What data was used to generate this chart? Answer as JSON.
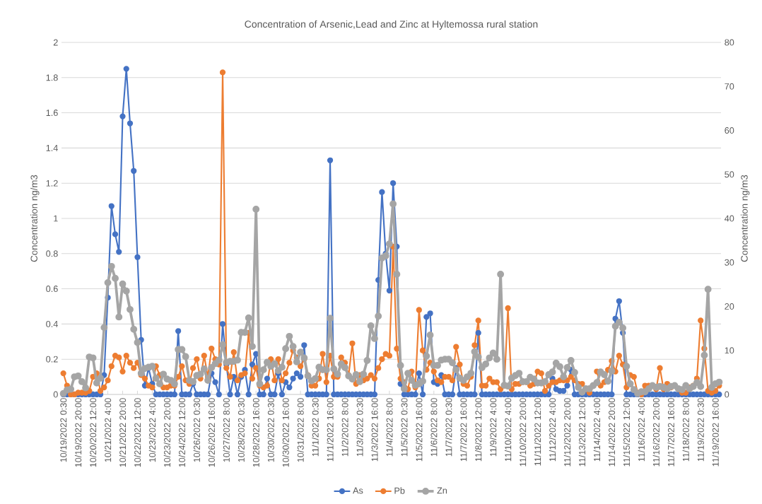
{
  "chart_data": {
    "type": "line",
    "title": "Concentration of Arsenic,Lead and Zinc at Hyltemossa rural station",
    "ylabel": "Concentration ng/m3",
    "y2label": "Concentration ng/m3",
    "categories": [
      "10/19/2022 0:30",
      null,
      null,
      null,
      "10/19/2022 20:00",
      null,
      null,
      null,
      "10/20/2022 12:00",
      null,
      null,
      null,
      "10/21/2022 4:00",
      null,
      null,
      null,
      "10/21/2022 20:00",
      null,
      null,
      null,
      "10/22/2022 12:00",
      null,
      null,
      null,
      "10/23/2022 4:00",
      null,
      null,
      null,
      "10/23/2022 20:00",
      null,
      null,
      null,
      "10/24/2022 12:00",
      null,
      null,
      null,
      "10/26/2022 0:30",
      null,
      null,
      null,
      "10/26/2022 16:00",
      null,
      null,
      null,
      "10/27/2022 8:00",
      null,
      null,
      null,
      "10/28/2022 0:30",
      null,
      null,
      null,
      "10/28/2022 16:00",
      null,
      null,
      null,
      "10/30/2022 0:30",
      null,
      null,
      null,
      "10/30/2022 16:00",
      null,
      null,
      null,
      "10/31/2022 8:00",
      null,
      null,
      null,
      "11/1/2022 0:30",
      null,
      null,
      null,
      "11/1/2022 16:00",
      null,
      null,
      null,
      "11/2/2022 8:00",
      null,
      null,
      null,
      "11/3/2022 0:30",
      null,
      null,
      null,
      "11/3/2022 16:00",
      null,
      null,
      null,
      "11/4/2022 8:00",
      null,
      null,
      null,
      "11/5/2022 0:30",
      null,
      null,
      null,
      "11/5/2022 16:00",
      null,
      null,
      null,
      "11/6/2022 8:00",
      null,
      null,
      null,
      "11/7/2022 0:30",
      null,
      null,
      null,
      "11/7/2022 16:00",
      null,
      null,
      null,
      "11/8/2022 12:00",
      null,
      null,
      null,
      "11/9/2022 4:00",
      null,
      null,
      null,
      "11/10/2022 4:00",
      null,
      null,
      null,
      "11/10/2022 20:00",
      null,
      null,
      null,
      "11/11/2022 12:00",
      null,
      null,
      null,
      "11/12/2022 4:00",
      null,
      null,
      null,
      "11/12/2022 20:00",
      null,
      null,
      null,
      "11/13/2022 12:00",
      null,
      null,
      null,
      "11/14/2022 4:00",
      null,
      null,
      null,
      "11/14/2022 20:00",
      null,
      null,
      null,
      "11/15/2022 12:00",
      null,
      null,
      null,
      "11/16/2022 4:00",
      null,
      null,
      null,
      "11/16/2022 20:00",
      null,
      null,
      null,
      "11/17/2022 16:00",
      null,
      null,
      null,
      "11/18/2022 8:00",
      null,
      null,
      null,
      "11/19/2022 0:30",
      null,
      null,
      null,
      "11/19/2022 16:00",
      null
    ],
    "series": [
      {
        "name": "As",
        "color": "#4472c4",
        "values": [
          0,
          0,
          0,
          0,
          0,
          0,
          0,
          0,
          0,
          0,
          0,
          0.11,
          0.55,
          1.07,
          0.91,
          0.81,
          1.58,
          1.85,
          1.54,
          1.27,
          0.78,
          0.31,
          0.05,
          0.15,
          0.06,
          0,
          0,
          0,
          0,
          0,
          0,
          0.36,
          0,
          0,
          0,
          0.06,
          0,
          0,
          0,
          0,
          0.12,
          0.07,
          0,
          0.4,
          0.17,
          0,
          0.1,
          0,
          0.1,
          0.14,
          0,
          0.17,
          0.23,
          0,
          0,
          0.09,
          0,
          0,
          0.12,
          0,
          0.07,
          0.04,
          0.09,
          0.12,
          0.1,
          0.28,
          0,
          0,
          0,
          0,
          0,
          0,
          1.33,
          0,
          0,
          0,
          0,
          0,
          0,
          0,
          0,
          0,
          0,
          0,
          0,
          0.65,
          1.15,
          0.8,
          0.59,
          1.2,
          0.84,
          0.06,
          0,
          0,
          0,
          0,
          0.12,
          0,
          0.44,
          0.46,
          0.07,
          0.06,
          0.11,
          0,
          0,
          0,
          0.15,
          0,
          0,
          0,
          0,
          0,
          0.35,
          0,
          0,
          0,
          0,
          0,
          0,
          0,
          0,
          0,
          0,
          0,
          0,
          0,
          0,
          0,
          0,
          0,
          0,
          0,
          0.09,
          0.03,
          0.02,
          0.02,
          0.05,
          0.14,
          0,
          0,
          0,
          0,
          0,
          0,
          0,
          0,
          0,
          0,
          0,
          0.43,
          0.53,
          0.35,
          0,
          0,
          0,
          0,
          0,
          0,
          0,
          0,
          0,
          0,
          0,
          0,
          0,
          0,
          0,
          0,
          0,
          0,
          0,
          0,
          0,
          0,
          0,
          0,
          0,
          0
        ]
      },
      {
        "name": "Pb",
        "color": "#ed7d31",
        "values": [
          0.12,
          0.05,
          0,
          0,
          0.01,
          0.01,
          0.01,
          0.02,
          0.1,
          0.12,
          0.02,
          0.04,
          0.08,
          0.16,
          0.22,
          0.21,
          0.13,
          0.22,
          0.18,
          0.15,
          0.18,
          0.11,
          0.09,
          0.05,
          0.04,
          0.16,
          0.11,
          0.04,
          0.04,
          0.05,
          0.05,
          0.1,
          0.16,
          0.08,
          0.06,
          0.15,
          0.2,
          0.09,
          0.22,
          0.1,
          0.26,
          0.2,
          0.17,
          1.83,
          0.15,
          0.1,
          0.24,
          0.08,
          0.11,
          0.12,
          0.35,
          0.09,
          0.15,
          0.05,
          0.04,
          0.05,
          0.2,
          0.08,
          0.2,
          0.08,
          0.12,
          0.18,
          0.25,
          0.21,
          0.16,
          0.2,
          0.11,
          0.05,
          0.05,
          0.09,
          0.23,
          0.07,
          0.22,
          0.1,
          0.1,
          0.21,
          0.18,
          0.11,
          0.29,
          0.06,
          0.11,
          0.08,
          0.09,
          0.11,
          0.09,
          0.15,
          0.2,
          0.23,
          0.22,
          0.84,
          0.26,
          0.09,
          0.07,
          0.03,
          0.13,
          0.04,
          0.48,
          0.25,
          0.14,
          0.18,
          0.13,
          0.08,
          0.07,
          0.1,
          0.1,
          0.08,
          0.27,
          0.17,
          0.06,
          0.05,
          0.1,
          0.28,
          0.42,
          0.05,
          0.05,
          0.09,
          0.07,
          0.07,
          0.03,
          0.05,
          0.49,
          0.03,
          0.06,
          0.06,
          0.07,
          0.07,
          0.05,
          0.06,
          0.13,
          0.12,
          0.02,
          0.05,
          0.07,
          0.07,
          0.08,
          0.08,
          0.08,
          0.1,
          0.08,
          0.06,
          0.06,
          0.03,
          0.01,
          null,
          0.13,
          0.05,
          0.07,
          0.14,
          0.19,
          0.13,
          0.22,
          0.17,
          0.04,
          0.11,
          0.1,
          0.01,
          0,
          0.05,
          0.05,
          0.05,
          0.03,
          0.15,
          0.03,
          0.06,
          0.04,
          null,
          0.03,
          0.01,
          0.01,
          0.04,
          0.05,
          0.09,
          0.42,
          0.26,
          0.02,
          0.01,
          0.02,
          0.05
        ]
      },
      {
        "name": "Zn",
        "color": "#a5a5a5",
        "axis": "y2",
        "values": [
          0.2,
          1.0,
          1.2,
          4.0,
          4.2,
          2.9,
          1.5,
          8.5,
          8.3,
          2.6,
          3.7,
          15.2,
          25.4,
          29.1,
          26.4,
          17.6,
          25.1,
          23.5,
          19.3,
          14.8,
          11.8,
          4.8,
          5.9,
          6.2,
          6.4,
          3.7,
          2.4,
          4.6,
          3.5,
          3.2,
          2.4,
          10.2,
          10.2,
          8.6,
          3.2,
          2.9,
          4.3,
          4.6,
          5.8,
          3.2,
          6.1,
          7.0,
          7.8,
          11.3,
          7.3,
          7.5,
          7.5,
          7.8,
          14.1,
          14.1,
          17.4,
          10.9,
          42.1,
          2.4,
          5.6,
          7.3,
          6.4,
          7.0,
          5.4,
          6.2,
          10.4,
          13.2,
          10.9,
          7.4,
          9.6,
          8.3,
          4.2,
          3.1,
          3.6,
          6.2,
          5.6,
          5.6,
          17.3,
          5.8,
          4.6,
          6.9,
          6.1,
          4.2,
          3.5,
          4.5,
          2.9,
          4.6,
          7.7,
          15.6,
          12.7,
          17.8,
          31.0,
          31.5,
          34.2,
          43.3,
          27.3,
          6.6,
          1.3,
          4.8,
          3.2,
          2.1,
          2.4,
          3.0,
          8.7,
          13.5,
          6.6,
          6.6,
          7.8,
          8.0,
          8.0,
          7.2,
          5.6,
          3.7,
          3.2,
          4.0,
          4.8,
          9.7,
          8.5,
          6.1,
          6.9,
          8.3,
          9.4,
          8.0,
          27.3,
          2.1,
          1.9,
          3.7,
          4.3,
          4.8,
          2.9,
          2.9,
          3.9,
          3.5,
          2.6,
          2.6,
          2.9,
          4.5,
          5.1,
          7.1,
          6.3,
          4.0,
          6.1,
          7.7,
          5.0,
          1.6,
          0.5,
          1.3,
          1.3,
          2.0,
          2.7,
          5.1,
          4.5,
          3.0,
          5.3,
          15.5,
          16.4,
          15.1,
          6.4,
          2.4,
          1.1,
          0.2,
          0.6,
          0.6,
          1.3,
          2.0,
          1.6,
          1.8,
          1.6,
          1.3,
          1.8,
          2.0,
          1.3,
          1.1,
          2.0,
          1.3,
          1.8,
          2.7,
          1.8,
          8.9,
          23.9,
          1.6,
          2.4,
          2.8
        ]
      }
    ],
    "ylim": [
      0,
      2
    ],
    "yticks": [
      0,
      0.2,
      0.4,
      0.6,
      0.8,
      1,
      1.2,
      1.4,
      1.6,
      1.8,
      2
    ],
    "y2lim": [
      0,
      80
    ],
    "y2ticks": [
      0,
      10,
      20,
      30,
      40,
      50,
      60,
      70,
      80
    ],
    "grid": "y",
    "legend": "bottom",
    "marker": "circle",
    "line_style": "solid"
  }
}
